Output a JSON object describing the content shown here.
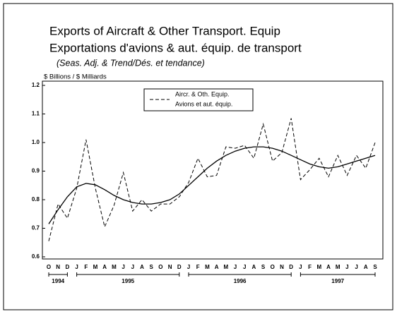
{
  "chart_data": {
    "type": "line",
    "title": "Exports of Aircraft & Other Transport. Equip",
    "title_fr": "Exportations d'avions & aut. équip. de transport",
    "subtitle": "(Seas. Adj. & Trend/Dés. et tendance)",
    "y_label": "$ Billions / $ Milliards",
    "categories": [
      "O",
      "N",
      "D",
      "J",
      "F",
      "M",
      "A",
      "M",
      "J",
      "J",
      "A",
      "S",
      "O",
      "N",
      "D",
      "J",
      "F",
      "M",
      "A",
      "M",
      "J",
      "J",
      "A",
      "S",
      "O",
      "N",
      "D",
      "J",
      "F",
      "M",
      "A",
      "M",
      "J",
      "J",
      "A",
      "S"
    ],
    "years": [
      {
        "label": "1994",
        "months": 3
      },
      {
        "label": "1995",
        "months": 12
      },
      {
        "label": "1996",
        "months": 12
      },
      {
        "label": "1997",
        "months": 9
      }
    ],
    "series": [
      {
        "name": "Aircr. & Oth. Equip.",
        "name_fr": "Avions et aut. équip.",
        "color": "#000000",
        "dash": true,
        "values": [
          0.655,
          0.785,
          0.735,
          0.84,
          1.01,
          0.84,
          0.705,
          0.78,
          0.895,
          0.76,
          0.8,
          0.76,
          0.785,
          0.785,
          0.81,
          0.86,
          0.945,
          0.88,
          0.885,
          0.985,
          0.98,
          0.99,
          0.945,
          1.065,
          0.935,
          0.965,
          1.085,
          0.87,
          0.905,
          0.945,
          0.88,
          0.955,
          0.885,
          0.955,
          0.91,
          1.0
        ]
      },
      {
        "color": "#000000",
        "dash": false,
        "values": [
          0.715,
          0.765,
          0.81,
          0.845,
          0.857,
          0.852,
          0.835,
          0.815,
          0.8,
          0.79,
          0.785,
          0.785,
          0.79,
          0.8,
          0.82,
          0.85,
          0.88,
          0.91,
          0.935,
          0.955,
          0.97,
          0.98,
          0.985,
          0.985,
          0.98,
          0.97,
          0.955,
          0.94,
          0.925,
          0.915,
          0.91,
          0.915,
          0.925,
          0.935,
          0.945,
          0.955
        ]
      }
    ],
    "ylim": [
      0.6,
      1.2
    ],
    "yticks": [
      0.6,
      0.7,
      0.8,
      0.9,
      {
        "value": 1,
        "label": "1.0"
      },
      1.1,
      1.2
    ]
  }
}
